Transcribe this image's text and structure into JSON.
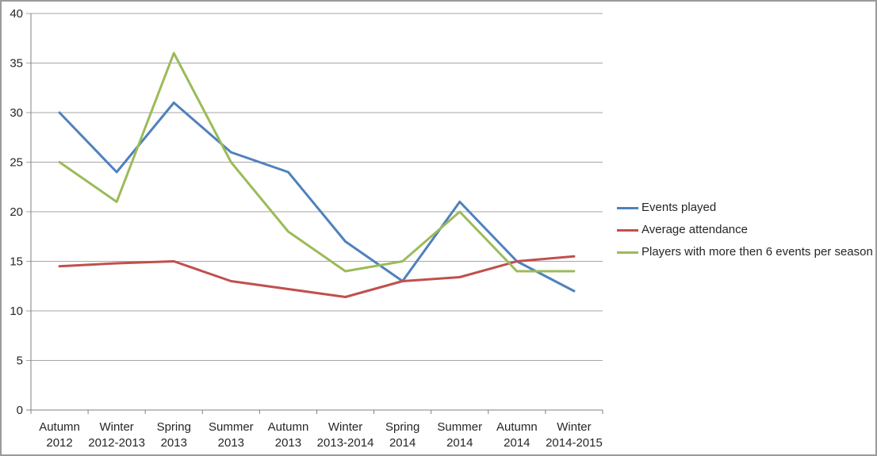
{
  "window": {
    "background": "#FFFFFF",
    "border_color": "#9a9a9a"
  },
  "chart_data": {
    "type": "line",
    "title": "",
    "xlabel": "",
    "ylabel": "",
    "grid": true,
    "legend_position": "right",
    "ylim": [
      0,
      40
    ],
    "y_ticks": [
      0,
      5,
      10,
      15,
      20,
      25,
      30,
      35,
      40
    ],
    "y_tick_labels": [
      "0",
      "5",
      "10",
      "15",
      "20",
      "25",
      "30",
      "35",
      "40"
    ],
    "categories": [
      [
        "Autumn",
        "2012"
      ],
      [
        "Winter",
        "2012-2013"
      ],
      [
        "Spring",
        "2013"
      ],
      [
        "Summer",
        "2013"
      ],
      [
        "Autumn",
        "2013"
      ],
      [
        "Winter",
        "2013-2014"
      ],
      [
        "Spring",
        "2014"
      ],
      [
        "Summer",
        "2014"
      ],
      [
        "Autumn",
        "2014"
      ],
      [
        "Winter",
        "2014-2015"
      ]
    ],
    "series": [
      {
        "name": "Events played",
        "color": "#4F81BD",
        "values": [
          30,
          24,
          31,
          26,
          24,
          17,
          13,
          21,
          15,
          12
        ]
      },
      {
        "name": "Average attendance",
        "color": "#C0504D",
        "values": [
          14.5,
          14.8,
          15,
          13,
          12.2,
          11.4,
          13,
          13.4,
          15,
          15.5
        ]
      },
      {
        "name": "Players with more then 6 events per season",
        "color": "#9BBB59",
        "values": [
          25,
          21,
          36,
          25,
          18,
          14,
          15,
          20,
          14,
          14
        ]
      }
    ],
    "gridline_color": "#A6A6A6",
    "axis_color": "#808080",
    "text_color": "#262626"
  }
}
